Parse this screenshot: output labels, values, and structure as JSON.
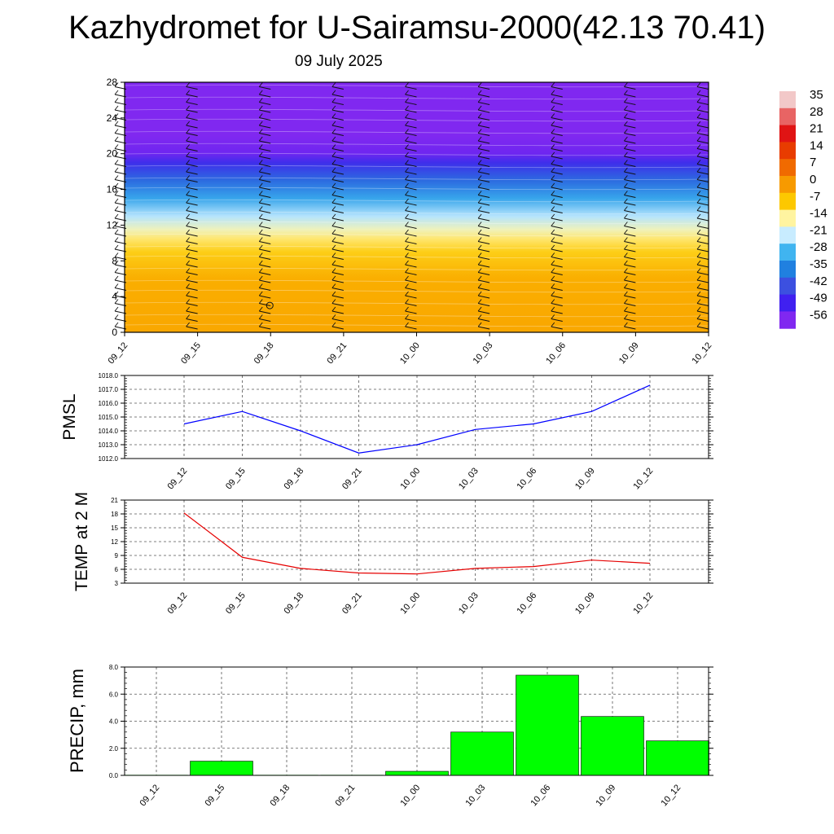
{
  "page": {
    "title": "Kazhydromet for U-Sairamsu-2000(42.13 70.41)",
    "subtitle": "09 July 2025"
  },
  "chart_data": [
    {
      "type": "heatmap",
      "name": "vertical temperature and wind profile",
      "xlabel": "",
      "ylabel": "",
      "x_ticks": [
        "09_12",
        "09_15",
        "09_18",
        "09_21",
        "10_00",
        "10_03",
        "10_06",
        "10_09",
        "10_12"
      ],
      "y_ticks": [
        "0",
        "4",
        "8",
        "12",
        "16",
        "20",
        "24",
        "28"
      ],
      "ylim": [
        0,
        28
      ],
      "colorbar": {
        "labels": [
          "35",
          "28",
          "21",
          "14",
          "7",
          "0",
          "-7",
          "-14",
          "-21",
          "-28",
          "-35",
          "-42",
          "-49",
          "-56"
        ],
        "colors": [
          "#f2c8c8",
          "#e86464",
          "#e01414",
          "#e83c00",
          "#f06a00",
          "#f79a00",
          "#fdc800",
          "#fff4a0",
          "#c8ecff",
          "#40b4f0",
          "#2080e0",
          "#3c50e0",
          "#4020f0",
          "#8028f0"
        ]
      },
      "profile": [
        {
          "level": 0,
          "value": -2
        },
        {
          "level": 6,
          "value": -3
        },
        {
          "level": 9,
          "value": -8
        },
        {
          "level": 10.5,
          "value": -12
        },
        {
          "level": 11.5,
          "value": -16
        },
        {
          "level": 13,
          "value": -22
        },
        {
          "level": 15,
          "value": -30
        },
        {
          "level": 17,
          "value": -38
        },
        {
          "level": 19,
          "value": -47
        },
        {
          "level": 20,
          "value": -54
        },
        {
          "level": 22,
          "value": -56
        },
        {
          "level": 28,
          "value": -56
        }
      ]
    },
    {
      "type": "line",
      "name": "pmsl",
      "ylabel": "PMSL",
      "categories": [
        "09_12",
        "09_15",
        "09_18",
        "09_21",
        "10_00",
        "10_03",
        "10_06",
        "10_09",
        "10_12"
      ],
      "values": [
        1014.5,
        1015.4,
        1014.0,
        1012.4,
        1013.0,
        1014.1,
        1014.5,
        1015.4,
        1017.3
      ],
      "ylim": [
        1012.0,
        1018.0
      ],
      "y_ticks": [
        "1012.0",
        "1013.0",
        "1014.0",
        "1015.0",
        "1016.0",
        "1017.0",
        "1018.0"
      ],
      "color": "#0000ff"
    },
    {
      "type": "line",
      "name": "temp-2m",
      "ylabel": "TEMP at 2 M",
      "categories": [
        "09_12",
        "09_15",
        "09_18",
        "09_21",
        "10_00",
        "10_03",
        "10_06",
        "10_09",
        "10_12"
      ],
      "values": [
        18.2,
        8.6,
        6.2,
        5.2,
        5.0,
        6.2,
        6.6,
        8.0,
        7.3
      ],
      "ylim": [
        3,
        21
      ],
      "y_ticks": [
        "3",
        "6",
        "9",
        "12",
        "15",
        "18",
        "21"
      ],
      "color": "#e60000"
    },
    {
      "type": "bar",
      "name": "precip",
      "ylabel": "PRECIP, mm",
      "categories": [
        "09_12",
        "09_15",
        "09_18",
        "09_21",
        "10_00",
        "10_03",
        "10_06",
        "10_09",
        "10_12"
      ],
      "values": [
        0.0,
        1.05,
        0.02,
        0.0,
        0.3,
        3.2,
        7.4,
        4.35,
        2.55
      ],
      "ylim": [
        0.0,
        8.0
      ],
      "y_ticks": [
        "0.0",
        "2.0",
        "4.0",
        "6.0",
        "8.0"
      ],
      "color": "#00ff00"
    }
  ]
}
